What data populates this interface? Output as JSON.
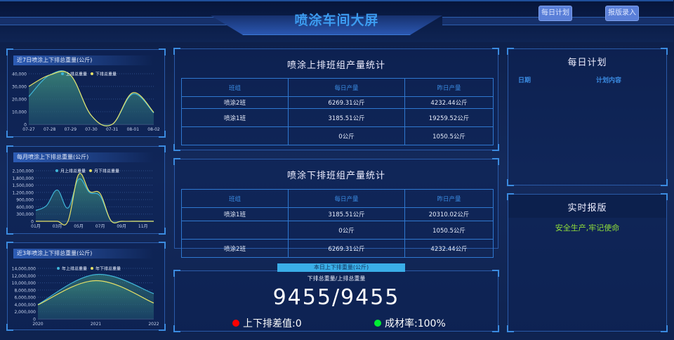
{
  "header": {
    "title": "喷涂车间大屏",
    "buttons": [
      "每日计划",
      "报版录入"
    ]
  },
  "left_charts": [
    {
      "title": "近7日喷涂上下排总重量(公斤)",
      "chart_data": {
        "type": "area",
        "title": "近7日喷涂上下排总重量(公斤)",
        "categories": [
          "07-27",
          "07-28",
          "07-29",
          "07-30",
          "07-31",
          "08-01",
          "08-02"
        ],
        "yticks": [
          "0",
          "10,000",
          "20,000",
          "30,000",
          "40,000"
        ],
        "ylim": [
          0,
          40000
        ],
        "legend_position": "top",
        "grid": true,
        "series": [
          {
            "name": "上排总重量",
            "color": "#3fb5d8",
            "values": [
              22000,
              39000,
              39000,
              7000,
              0,
              24000,
              9000
            ]
          },
          {
            "name": "下排总重量",
            "color": "#e5e067",
            "values": [
              30000,
              39000,
              39000,
              7000,
              0,
              25000,
              9500
            ]
          }
        ]
      }
    },
    {
      "title": "每月喷涂上下排总重量(公斤)",
      "chart_data": {
        "type": "area",
        "title": "每月喷涂上下排总重量(公斤)",
        "categories": [
          "01月",
          "02月",
          "03月",
          "04月",
          "05月",
          "06月",
          "07月",
          "08月",
          "09月",
          "10月",
          "11月",
          "12月"
        ],
        "xlabels_shown": [
          "01月",
          "03月",
          "05月",
          "07月",
          "09月",
          "11月"
        ],
        "yticks": [
          "0",
          "300,000",
          "600,000",
          "900,000",
          "1,200,000",
          "1,500,000",
          "1,800,000",
          "2,100,000"
        ],
        "ylim": [
          0,
          2100000
        ],
        "legend_position": "top",
        "grid": true,
        "series": [
          {
            "name": "月上排总重量",
            "color": "#3fb5d8",
            "values": [
              450000,
              650000,
              1300000,
              550000,
              1750000,
              1200000,
              1050000,
              30000,
              0,
              0,
              0,
              0
            ]
          },
          {
            "name": "月下排总重量",
            "color": "#e5e067",
            "values": [
              0,
              0,
              0,
              0,
              1950000,
              1250000,
              1150000,
              30000,
              0,
              0,
              0,
              0
            ]
          }
        ]
      }
    },
    {
      "title": "近3年喷涂上下排总重量(公斤)",
      "chart_data": {
        "type": "area",
        "title": "近3年喷涂上下排总重量(公斤)",
        "categories": [
          "2020",
          "2021",
          "2022"
        ],
        "yticks": [
          "0",
          "2,000,000",
          "4,000,000",
          "6,000,000",
          "8,000,000",
          "10,000,000",
          "12,000,000",
          "14,000,000"
        ],
        "ylim": [
          0,
          14000000
        ],
        "legend_position": "top",
        "grid": true,
        "series": [
          {
            "name": "年上排总重量",
            "color": "#3fb5d8",
            "values": [
              4000000,
              12300000,
              7000000
            ]
          },
          {
            "name": "年下排总重量",
            "color": "#e5e067",
            "values": [
              3900000,
              10600000,
              4400000
            ]
          }
        ]
      }
    }
  ],
  "upper_table": {
    "title": "喷涂上排班组产量统计",
    "headers": [
      "班组",
      "每日产量",
      "昨日产量"
    ],
    "rows": [
      [
        "喷涂2班",
        "6269.31公斤",
        "4232.44公斤"
      ],
      [
        "喷涂1班",
        "3185.51公斤",
        "19259.52公斤"
      ],
      [
        "",
        "0公斤",
        "1050.5公斤"
      ]
    ]
  },
  "lower_table": {
    "title": "喷涂下排班组产量统计",
    "headers": [
      "班组",
      "每日产量",
      "昨日产量"
    ],
    "rows": [
      [
        "喷涂1班",
        "3185.51公斤",
        "20310.02公斤"
      ],
      [
        "",
        "0公斤",
        "1050.5公斤"
      ],
      [
        "喷涂2班",
        "6269.31公斤",
        "4232.44公斤"
      ]
    ]
  },
  "today": {
    "tab": "本日上下排重量(公斤)",
    "subtitle": "下排总重量/上排总重量",
    "value": "9455/9455",
    "diff": "上下排差值:0",
    "diff_color": "#ff0000",
    "rate": "成材率:100%",
    "rate_color": "#00ee33"
  },
  "daily_plan": {
    "title": "每日计划",
    "columns": [
      "日期",
      "计划内容"
    ]
  },
  "report": {
    "title": "实时报版",
    "slogan": "安全生产,牢记使命"
  }
}
